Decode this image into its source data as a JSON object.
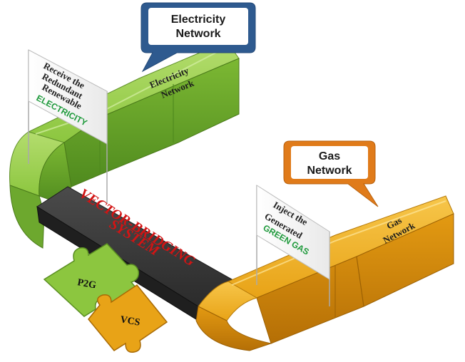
{
  "electricity_bubble": {
    "line1": "Electricity",
    "line2": "Network"
  },
  "gas_bubble": {
    "line1": "Gas",
    "line2": "Network"
  },
  "electricity_flag": {
    "lines": [
      "Receive the",
      "Redundant",
      "Renewable"
    ],
    "accent": "ELECTRICITY"
  },
  "gas_flag": {
    "lines": [
      "Inject the",
      "Generated"
    ],
    "accent": "GREEN GAS"
  },
  "electricity_pipe_label": {
    "line1": "Electricity",
    "line2": "Network"
  },
  "gas_pipe_label": {
    "line1": "Gas",
    "line2": "Network"
  },
  "bridge": {
    "line1": "VECTOR-BRIDGING",
    "line2": "SYSTEM"
  },
  "puzzle": {
    "piece1": "P2G",
    "piece2": "VCS"
  },
  "colors": {
    "green_pipe": "#8cc63f",
    "orange_pipe": "#e8a317",
    "bridge": "#3a3a3a",
    "bubble_blue": "#2e5a8f",
    "bubble_orange": "#e07b1a",
    "accent_green": "#1f9a3c",
    "bridge_text_red": "#d21414"
  }
}
